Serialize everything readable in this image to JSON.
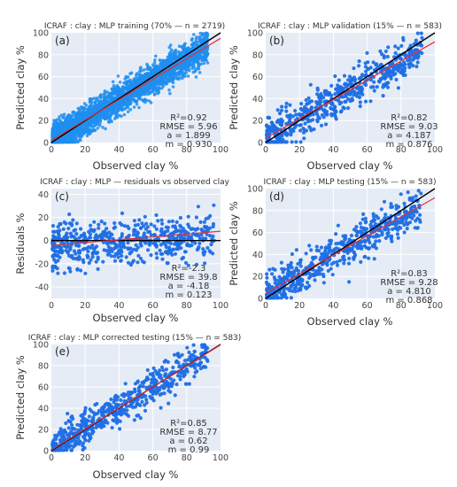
{
  "chart_data": [
    {
      "id": "a",
      "type": "scatter",
      "panel_label": "(a)",
      "title": "ICRAF : clay : MLP training (70% — n = 2719)",
      "xlabel": "Observed clay %",
      "ylabel": "Predicted clay %",
      "xlim": [
        0,
        100
      ],
      "ylim": [
        0,
        100
      ],
      "xticks": [
        0,
        20,
        40,
        60,
        80,
        100
      ],
      "yticks": [
        0,
        20,
        40,
        60,
        80,
        100
      ],
      "grid": true,
      "point_color": "#1f8ef0",
      "n_points": 2719,
      "point_spread": 7,
      "reference_line": {
        "slope": 1,
        "intercept": 0,
        "color": "#000000"
      },
      "fit_line": {
        "slope": 0.93,
        "intercept": 1.899,
        "color": "#e4303a"
      },
      "stats": [
        "R²=0.92",
        "RMSE = 5.96",
        "a = 1.899",
        "m = 0.930"
      ]
    },
    {
      "id": "b",
      "type": "scatter",
      "panel_label": "(b)",
      "title": "ICRAF : clay : MLP validation (15% — n = 583)",
      "xlabel": "Observed clay %",
      "ylabel": "Predicted clay %",
      "xlim": [
        0,
        100
      ],
      "ylim": [
        0,
        100
      ],
      "xticks": [
        0,
        20,
        40,
        60,
        80,
        100
      ],
      "yticks": [
        0,
        20,
        40,
        60,
        80,
        100
      ],
      "grid": true,
      "point_color": "#1f6fe5",
      "n_points": 583,
      "point_spread": 9,
      "reference_line": {
        "slope": 1,
        "intercept": 0,
        "color": "#000000"
      },
      "fit_line": {
        "slope": 0.876,
        "intercept": 4.187,
        "color": "#e4303a"
      },
      "stats": [
        "R²=0.82",
        "RMSE = 9.03",
        "a = 4.187",
        "m = 0.876"
      ]
    },
    {
      "id": "c",
      "type": "scatter",
      "panel_label": "(c)",
      "title": "ICRAF : clay : MLP — residuals vs observed clay",
      "xlabel": "Observed clay %",
      "ylabel": "Residuals %",
      "xlim": [
        0,
        100
      ],
      "ylim": [
        -50,
        45
      ],
      "xticks": [
        0,
        20,
        40,
        60,
        80,
        100
      ],
      "yticks": [
        -40,
        -20,
        0,
        20,
        40
      ],
      "grid": true,
      "point_color": "#1f6fe5",
      "n_points": 583,
      "point_spread": 10,
      "reference_line": {
        "slope": 0,
        "intercept": 0,
        "color": "#000000"
      },
      "fit_line": {
        "slope": 0.123,
        "intercept": -4.18,
        "color": "#e4303a"
      },
      "stats": [
        "R²=-2.3",
        "RMSE = 39.8",
        "a = -4.18",
        "m = 0.123"
      ]
    },
    {
      "id": "d",
      "type": "scatter",
      "panel_label": "(d)",
      "title": "ICRAF : clay : MLP testing (15% — n = 583)",
      "xlabel": "Observed clay %",
      "ylabel": "Predicted clay %",
      "xlim": [
        0,
        100
      ],
      "ylim": [
        0,
        100
      ],
      "xticks": [
        0,
        20,
        40,
        60,
        80,
        100
      ],
      "yticks": [
        0,
        20,
        40,
        60,
        80,
        100
      ],
      "grid": true,
      "point_color": "#1f6fe5",
      "n_points": 583,
      "point_spread": 9,
      "reference_line": {
        "slope": 1,
        "intercept": 0,
        "color": "#000000"
      },
      "fit_line": {
        "slope": 0.868,
        "intercept": 4.81,
        "color": "#e4303a"
      },
      "stats": [
        "R²=0.83",
        "RMSE = 9.28",
        "a = 4.810",
        "m = 0.868"
      ]
    },
    {
      "id": "e",
      "type": "scatter",
      "panel_label": "(e)",
      "title": "ICRAF : clay : MLP corrected testing (15% — n = 583)",
      "xlabel": "Observed clay %",
      "ylabel": "Predicted clay %",
      "xlim": [
        0,
        100
      ],
      "ylim": [
        0,
        100
      ],
      "xticks": [
        0,
        20,
        40,
        60,
        80,
        100
      ],
      "yticks": [
        0,
        20,
        40,
        60,
        80,
        100
      ],
      "grid": true,
      "point_color": "#1f6fe5",
      "n_points": 583,
      "point_spread": 8.5,
      "reference_line": {
        "slope": 1,
        "intercept": 0,
        "color": "#000000"
      },
      "fit_line": {
        "slope": 0.99,
        "intercept": 0.62,
        "color": "#e4303a"
      },
      "stats": [
        "R²=0.85",
        "RMSE = 8.77",
        "a = 0.62",
        "m = 0.99"
      ]
    }
  ]
}
